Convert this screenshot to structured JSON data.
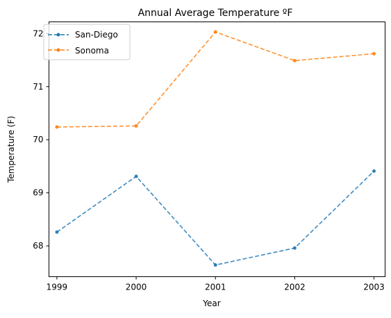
{
  "chart_data": {
    "type": "line",
    "title": "Annual Average Temperature ºF",
    "xlabel": "Year",
    "ylabel": "Temperature (F)",
    "x": [
      "1999",
      "2000",
      "2001",
      "2002",
      "2003"
    ],
    "xlim": [
      -0.1,
      4.14
    ],
    "ylim": [
      67.42,
      72.22
    ],
    "yticks": [
      68,
      69,
      70,
      71,
      72
    ],
    "grid": false,
    "legend": "top-left",
    "series": [
      {
        "name": "San-Diego",
        "color": "#1f77b4",
        "values": [
          68.26,
          69.31,
          67.64,
          67.96,
          69.41
        ]
      },
      {
        "name": "Sonoma",
        "color": "#ff7f0e",
        "values": [
          70.24,
          70.26,
          72.03,
          71.49,
          71.62
        ]
      }
    ]
  }
}
